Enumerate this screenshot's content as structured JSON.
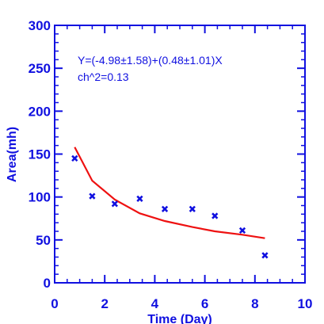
{
  "colors": {
    "axis": "#1010e0",
    "fit_line": "#ee1111",
    "markers": "#1010e0"
  },
  "chart_data": {
    "type": "scatter",
    "xlabel": "Time (Day)",
    "ylabel": "Area(mh)",
    "xlim": [
      0,
      10
    ],
    "ylim": [
      0,
      300
    ],
    "x_ticks": [
      0,
      2,
      4,
      6,
      8,
      10
    ],
    "y_ticks": [
      0,
      50,
      100,
      150,
      200,
      250,
      300
    ],
    "grid": false,
    "annotations": [
      "Y=(-4.98±1.58)+(0.48±1.01)X",
      "ch^2=0.13"
    ],
    "series": [
      {
        "type": "scatter",
        "marker": "x",
        "x": [
          0.8,
          1.5,
          2.4,
          3.4,
          4.4,
          5.5,
          6.4,
          7.5,
          8.4
        ],
        "y": [
          145,
          101,
          92,
          98,
          86,
          86,
          78,
          61,
          32
        ]
      },
      {
        "type": "line",
        "x": [
          0.8,
          1.5,
          2.4,
          3.4,
          4.4,
          5.5,
          6.4,
          7.5,
          8.4
        ],
        "y": [
          158,
          119,
          97,
          81,
          72,
          65,
          60,
          56,
          52
        ]
      }
    ]
  }
}
